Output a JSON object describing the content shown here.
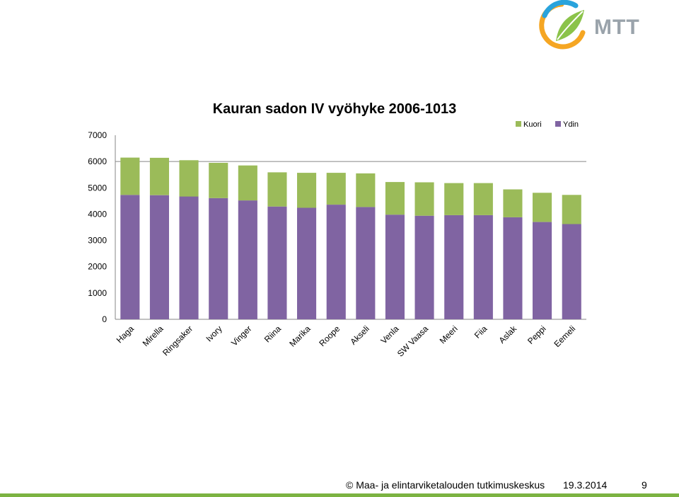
{
  "logo": {
    "text": "MTT"
  },
  "footer": {
    "copyright": "© Maa- ja elintarviketalouden tutkimuskeskus",
    "date": "19.3.2014",
    "page": "9"
  },
  "colors": {
    "kuori": "#9bbb59",
    "ydin": "#8064a2",
    "accent": "#7cb342"
  },
  "chart_data": {
    "type": "bar",
    "stacked": true,
    "title": "Kauran sadon IV vyöhyke 2006-1013",
    "categories": [
      "Haga",
      "Mirella",
      "Ringsaker",
      "Ivory",
      "Vinger",
      "Riina",
      "Marika",
      "Roope",
      "Akseli",
      "Venla",
      "SW Vaasa",
      "Meeri",
      "Fiia",
      "Aslak",
      "Peppi",
      "Eemeli"
    ],
    "series": [
      {
        "name": "Ydin",
        "color": "#8064a2",
        "values": [
          4730,
          4720,
          4670,
          4610,
          4520,
          4290,
          4240,
          4360,
          4270,
          3980,
          3940,
          3960,
          3960,
          3880,
          3700,
          3620
        ]
      },
      {
        "name": "Kuori",
        "color": "#9bbb59",
        "values": [
          1420,
          1420,
          1380,
          1340,
          1330,
          1300,
          1330,
          1210,
          1280,
          1240,
          1270,
          1220,
          1220,
          1060,
          1110,
          1110
        ]
      }
    ],
    "legend": [
      "Kuori",
      "Ydin"
    ],
    "legend_position": "top-right",
    "yticks": [
      0,
      1000,
      2000,
      3000,
      4000,
      5000,
      6000,
      7000
    ],
    "ylim": [
      0,
      7000
    ],
    "grid": "horizontal at 6000",
    "xlabel": "",
    "ylabel": ""
  }
}
